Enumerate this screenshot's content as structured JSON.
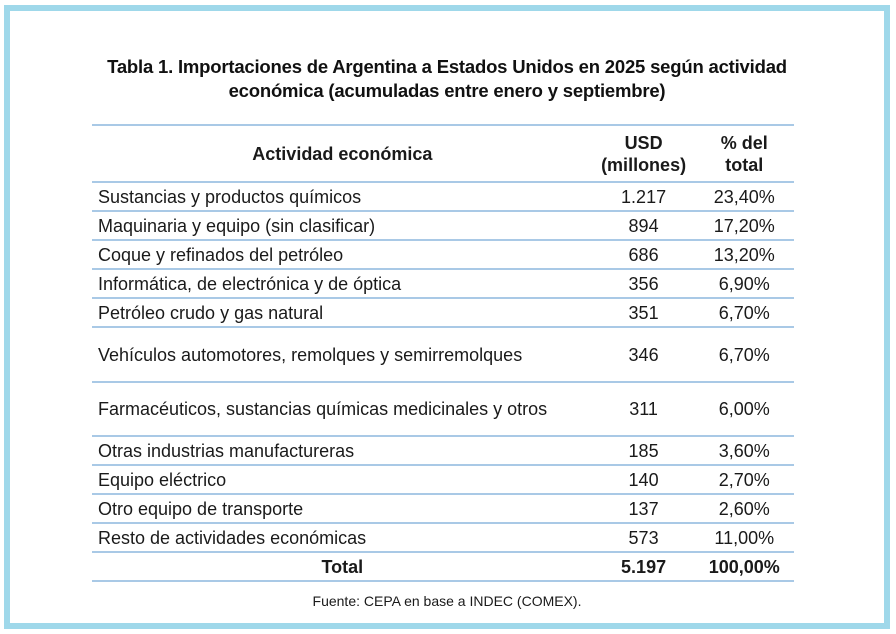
{
  "title": {
    "line1": "Tabla 1. Importaciones de Argentina a Estados Unidos en 2025 según actividad",
    "line2": "económica (acumuladas entre enero y septiembre)"
  },
  "table": {
    "headers": {
      "activity": "Actividad económica",
      "usd_line1": "USD",
      "usd_line2": "(millones)",
      "pct_line1": "% del",
      "pct_line2": "total"
    },
    "rows": [
      {
        "activity": "Sustancias y productos químicos",
        "usd": "1.217",
        "pct": "23,40%"
      },
      {
        "activity": "Maquinaria y equipo (sin clasificar)",
        "usd": "894",
        "pct": "17,20%"
      },
      {
        "activity": "Coque y refinados del petróleo",
        "usd": "686",
        "pct": "13,20%"
      },
      {
        "activity": "Informática, de electrónica y de óptica",
        "usd": "356",
        "pct": "6,90%"
      },
      {
        "activity": "Petróleo crudo y gas natural",
        "usd": "351",
        "pct": "6,70%"
      },
      {
        "activity": "Vehículos automotores, remolques y semirremolques",
        "usd": "346",
        "pct": "6,70%"
      },
      {
        "activity": "Farmacéuticos, sustancias químicas medicinales y otros",
        "usd": "311",
        "pct": "6,00%"
      },
      {
        "activity": "Otras industrias manufactureras",
        "usd": "185",
        "pct": "3,60%"
      },
      {
        "activity": "Equipo eléctrico",
        "usd": "140",
        "pct": "2,70%"
      },
      {
        "activity": "Otro equipo de transporte",
        "usd": "137",
        "pct": "2,60%"
      },
      {
        "activity": "Resto de actividades económicas",
        "usd": "573",
        "pct": "11,00%"
      }
    ],
    "total": {
      "label": "Total",
      "usd": "5.197",
      "pct": "100,00%"
    }
  },
  "source": "Fuente: CEPA en base a INDEC (COMEX).",
  "colors": {
    "frame": "#9fd8ea",
    "rule": "#a9c9e6"
  }
}
